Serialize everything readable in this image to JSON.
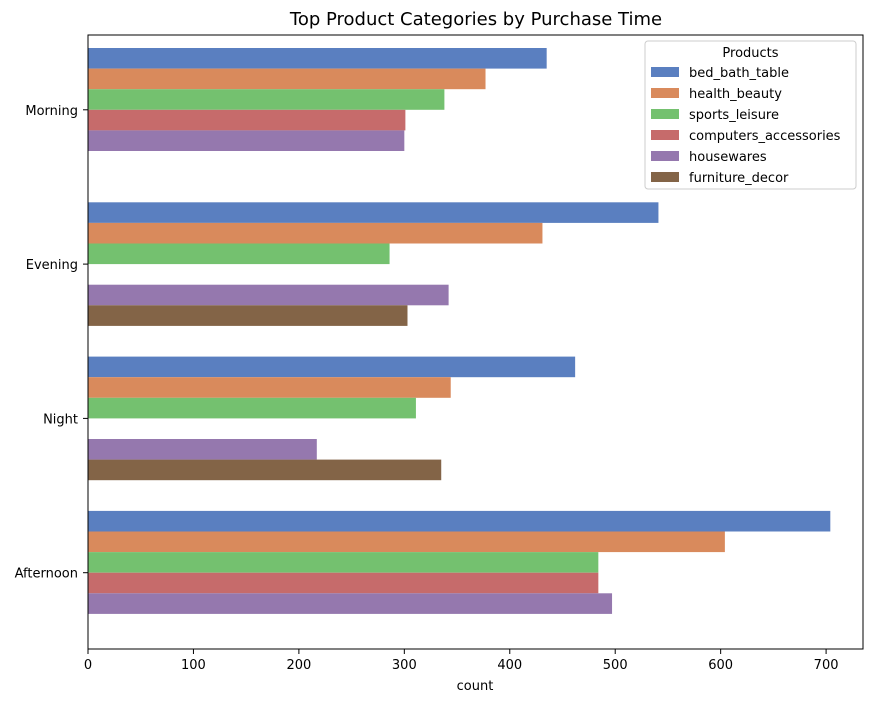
{
  "chart_data": {
    "type": "bar",
    "orientation": "horizontal",
    "title": "Top Product Categories by Purchase Time",
    "xlabel": "count",
    "ylabel": "",
    "xlim": [
      0,
      735
    ],
    "xticks": [
      0,
      100,
      200,
      300,
      400,
      500,
      600,
      700
    ],
    "categories": [
      "Morning",
      "Evening",
      "Night",
      "Afternoon"
    ],
    "legend": {
      "title": "Products",
      "position": "top-right"
    },
    "grid": false,
    "series": [
      {
        "name": "bed_bath_table",
        "color": "#5a7fc0",
        "values": [
          435,
          541,
          462,
          704
        ]
      },
      {
        "name": "health_beauty",
        "color": "#d98a5c",
        "values": [
          377,
          431,
          344,
          604
        ]
      },
      {
        "name": "sports_leisure",
        "color": "#74c16f",
        "values": [
          338,
          286,
          311,
          484
        ]
      },
      {
        "name": "computers_accessories",
        "color": "#c66b6b",
        "values": [
          301,
          null,
          null,
          484
        ]
      },
      {
        "name": "housewares",
        "color": "#9578ae",
        "values": [
          300,
          342,
          217,
          497
        ]
      },
      {
        "name": "furniture_decor",
        "color": "#836447",
        "values": [
          null,
          303,
          335,
          null
        ]
      }
    ]
  }
}
